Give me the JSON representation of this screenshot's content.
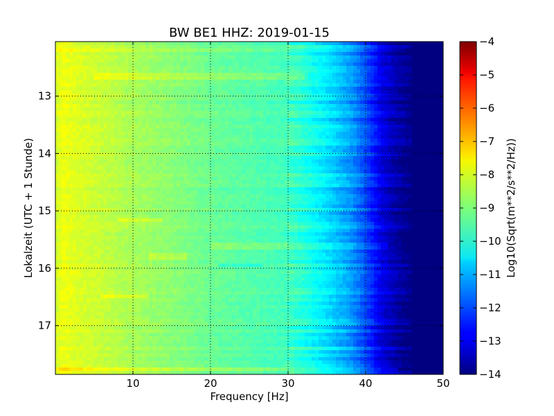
{
  "chart_data": {
    "type": "heatmap",
    "title": "BW BE1 HHZ: 2019-01-15",
    "xlabel": "Frequency [Hz]",
    "ylabel": "Lokalzeit (UTC + 1 Stunde)",
    "xlim": [
      0,
      50
    ],
    "ylim": [
      12.05,
      17.85
    ],
    "y_inverted": true,
    "xticks": [
      {
        "value": 10,
        "label": "10"
      },
      {
        "value": 20,
        "label": "20"
      },
      {
        "value": 30,
        "label": "30"
      },
      {
        "value": 40,
        "label": "40"
      },
      {
        "value": 50,
        "label": "50"
      }
    ],
    "yticks": [
      {
        "value": 13,
        "label": "13"
      },
      {
        "value": 14,
        "label": "14"
      },
      {
        "value": 15,
        "label": "15"
      },
      {
        "value": 16,
        "label": "16"
      },
      {
        "value": 17,
        "label": "17"
      }
    ],
    "grid": true,
    "colormap": "jet",
    "colorbar": {
      "label": "Log10(Sqrt(m**2/s**2/Hz))",
      "range": [
        -14,
        -4
      ],
      "ticks": [
        {
          "value": -4,
          "label": "−4"
        },
        {
          "value": -5,
          "label": "−5"
        },
        {
          "value": -6,
          "label": "−6"
        },
        {
          "value": -7,
          "label": "−7"
        },
        {
          "value": -8,
          "label": "−8"
        },
        {
          "value": -9,
          "label": "−9"
        },
        {
          "value": -10,
          "label": "−10"
        },
        {
          "value": -11,
          "label": "−11"
        },
        {
          "value": -12,
          "label": "−12"
        },
        {
          "value": -13,
          "label": "−13"
        },
        {
          "value": -14,
          "label": "−14"
        }
      ]
    },
    "spectral_profile": [
      {
        "freq": 0,
        "value": -8.2
      },
      {
        "freq": 1,
        "value": -7.9
      },
      {
        "freq": 3,
        "value": -8.1
      },
      {
        "freq": 6,
        "value": -8.3
      },
      {
        "freq": 10,
        "value": -8.6
      },
      {
        "freq": 15,
        "value": -8.9
      },
      {
        "freq": 20,
        "value": -9.2
      },
      {
        "freq": 25,
        "value": -9.4
      },
      {
        "freq": 30,
        "value": -9.6
      },
      {
        "freq": 32,
        "value": -9.9
      },
      {
        "freq": 35,
        "value": -10.5
      },
      {
        "freq": 38,
        "value": -11.2
      },
      {
        "freq": 40,
        "value": -12.0
      },
      {
        "freq": 42,
        "value": -13.0
      },
      {
        "freq": 44,
        "value": -13.6
      },
      {
        "freq": 46,
        "value": -14.0
      },
      {
        "freq": 50,
        "value": -14.0
      }
    ],
    "noise_bands": [
      {
        "time": 12.2,
        "freq_min": 0,
        "freq_max": 45,
        "delta": 0.3
      },
      {
        "time": 12.65,
        "freq_min": 5,
        "freq_max": 32,
        "delta": 0.4
      },
      {
        "time": 15.15,
        "freq_min": 8,
        "freq_max": 14,
        "delta": 0.5
      },
      {
        "time": 15.6,
        "freq_min": 20,
        "freq_max": 43,
        "delta": 0.4
      },
      {
        "time": 15.8,
        "freq_min": 12,
        "freq_max": 17,
        "delta": 0.4
      },
      {
        "time": 15.95,
        "freq_min": 21,
        "freq_max": 27,
        "delta": -0.5
      },
      {
        "time": 16.5,
        "freq_min": 6,
        "freq_max": 12,
        "delta": 0.5
      },
      {
        "time": 17.75,
        "freq_min": 0,
        "freq_max": 44,
        "delta": 0.6
      }
    ]
  }
}
